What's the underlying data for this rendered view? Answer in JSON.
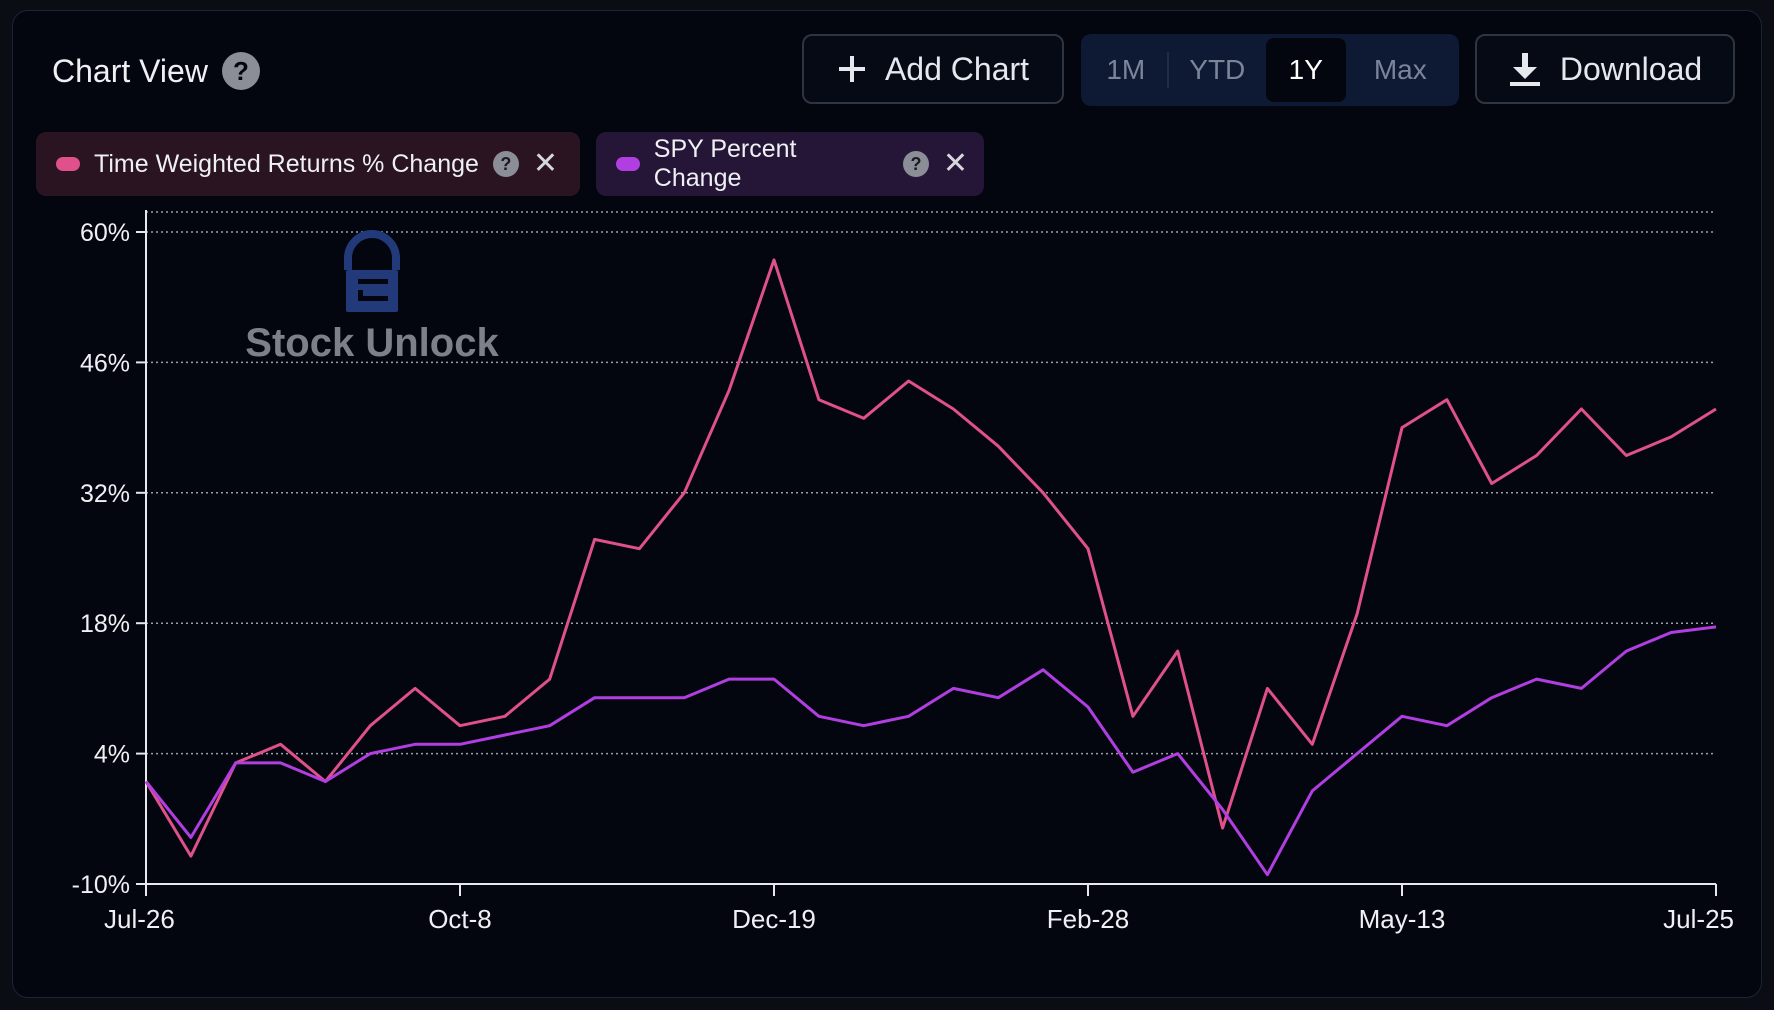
{
  "header": {
    "title": "Chart View",
    "help_glyph": "?",
    "add_chart_label": "Add Chart",
    "download_label": "Download",
    "ranges": [
      "1M",
      "YTD",
      "1Y",
      "Max"
    ],
    "active_range": "1Y"
  },
  "series_pills": [
    {
      "label": "Time Weighted Returns % Change",
      "color": "#e0508a"
    },
    {
      "label": "SPY Percent Change",
      "color": "#b13ee0"
    }
  ],
  "watermark": "Stock Unlock",
  "colors": {
    "series_1": "#e0508a",
    "series_2": "#b13ee0",
    "background": "#03060f",
    "grid": "#9aa0aa"
  },
  "chart_data": {
    "type": "line",
    "x_ticks": [
      "Jul-26",
      "Oct-8",
      "Dec-19",
      "Feb-28",
      "May-13",
      "Jul-25"
    ],
    "y_ticks": [
      "60%",
      "46%",
      "32%",
      "18%",
      "4%",
      "-10%"
    ],
    "ylim": [
      -10,
      60
    ],
    "x": [
      "Jul-26",
      "Aug-5",
      "Aug-15",
      "Aug-26",
      "Sep-5",
      "Sep-16",
      "Sep-26",
      "Oct-8",
      "Oct-18",
      "Oct-29",
      "Nov-8",
      "Nov-19",
      "Nov-29",
      "Dec-10",
      "Dec-19",
      "Dec-30",
      "Jan-9",
      "Jan-20",
      "Jan-30",
      "Feb-10",
      "Feb-19",
      "Feb-28",
      "Mar-11",
      "Mar-21",
      "Apr-1",
      "Apr-11",
      "Apr-22",
      "May-2",
      "May-13",
      "May-23",
      "Jun-3",
      "Jun-13",
      "Jun-24",
      "Jul-3",
      "Jul-14",
      "Jul-25"
    ],
    "series": [
      {
        "name": "Time Weighted Returns % Change",
        "values": [
          1,
          -7,
          3,
          5,
          1,
          7,
          11,
          7,
          8,
          12,
          27,
          26,
          32,
          43,
          57,
          42,
          40,
          44,
          41,
          37,
          32,
          26,
          8,
          15,
          -4,
          11,
          5,
          19,
          39,
          42,
          33,
          36,
          41,
          36,
          38,
          41
        ]
      },
      {
        "name": "SPY Percent Change",
        "values": [
          1,
          -5,
          3,
          3,
          1,
          4,
          5,
          5,
          6,
          7,
          10,
          10,
          10,
          12,
          12,
          8,
          7,
          8,
          11,
          10,
          13,
          9,
          2,
          4,
          -2,
          -9,
          0,
          4,
          8,
          7,
          10,
          12,
          11,
          15,
          17,
          17.6
        ]
      }
    ]
  }
}
